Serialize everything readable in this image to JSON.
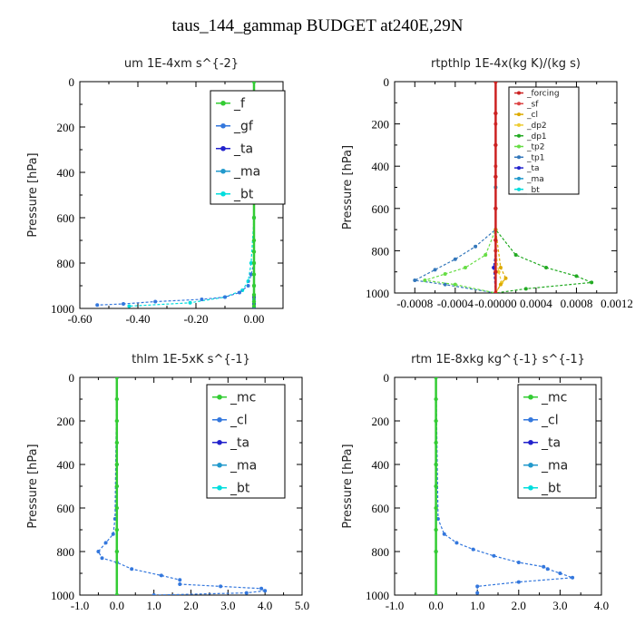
{
  "title": "taus_144_gammap  BUDGET at240E,29N",
  "chart_data": [
    {
      "type": "line",
      "title": "um  1E-4xm s^{-2}",
      "ylabel": "Pressure [hPa]",
      "ylim": [
        1000,
        0
      ],
      "xlim": [
        -0.6,
        0.1
      ],
      "xticks": [
        "-0.60",
        "-0.40",
        "-0.20",
        "0.00"
      ],
      "xtickvals": [
        -0.6,
        -0.4,
        -0.2,
        0.0
      ],
      "yticks": [
        "0",
        "200",
        "400",
        "600",
        "800",
        "1000"
      ],
      "legend_position": "top-right",
      "series": [
        {
          "name": "_f",
          "color": "#33cc33",
          "x": [
            0.0,
            0.0,
            0.0,
            0.0,
            0.0,
            0.0,
            0.0,
            0.0,
            0.0,
            0.0,
            0.0,
            0.0,
            0.0,
            0.0,
            0.0
          ],
          "y": [
            0,
            100,
            200,
            300,
            400,
            500,
            600,
            700,
            750,
            800,
            850,
            900,
            940,
            970,
            990
          ]
        },
        {
          "name": "_gf",
          "color": "#3377dd",
          "x": [
            0.0,
            0.01,
            0.01,
            0.01,
            0.0,
            0.0,
            0.0,
            -0.01,
            -0.02,
            -0.05,
            -0.1,
            -0.18,
            -0.34,
            -0.45,
            -0.54
          ],
          "y": [
            100,
            150,
            200,
            300,
            400,
            600,
            800,
            850,
            900,
            930,
            950,
            960,
            970,
            980,
            985
          ]
        },
        {
          "name": "_ta",
          "color": "#2222cc",
          "x": [
            0.0,
            0.0,
            0.0,
            0.0,
            0.0,
            0.0,
            0.0,
            0.0,
            0.0
          ],
          "y": [
            0,
            200,
            400,
            600,
            800,
            900,
            950,
            980,
            1000
          ]
        },
        {
          "name": "_ma",
          "color": "#2299cc",
          "x": [
            0.0,
            0.0,
            0.0,
            0.0,
            0.0,
            0.0
          ],
          "y": [
            0,
            300,
            600,
            900,
            960,
            1000
          ]
        },
        {
          "name": "_bt",
          "color": "#00dddd",
          "x": [
            0.0,
            0.0,
            0.0,
            -0.01,
            -0.02,
            -0.04,
            -0.1,
            -0.22,
            -0.43
          ],
          "y": [
            0,
            300,
            600,
            800,
            880,
            920,
            950,
            975,
            990
          ]
        }
      ]
    },
    {
      "type": "line",
      "title": "rtpthlp  1E-4x(kg K)/(kg s)",
      "ylabel": "Pressure [hPa]",
      "ylim": [
        1000,
        0
      ],
      "xlim": [
        -0.001,
        0.0012
      ],
      "xticks": [
        "-0.0008",
        "-0.0004",
        "-0.00000",
        "0.0004",
        "0.0008",
        "0.0012"
      ],
      "xtickvals": [
        -0.0008,
        -0.0004,
        0.0,
        0.0004,
        0.0008,
        0.0012
      ],
      "yticks": [
        "0",
        "200",
        "400",
        "600",
        "800",
        "1000"
      ],
      "legend_position": "top-right",
      "series": [
        {
          "name": "_forcing",
          "color": "#cc2222",
          "x": [
            0.0,
            0.0,
            0.0,
            0.0,
            0.0,
            0.0,
            0.0,
            0.0
          ],
          "y": [
            0,
            150,
            300,
            450,
            600,
            750,
            900,
            1000
          ]
        },
        {
          "name": "_sf",
          "color": "#dd4444",
          "x": [
            0.0,
            0.0,
            0.0,
            0.0,
            0.0,
            0.0
          ],
          "y": [
            0,
            200,
            400,
            600,
            800,
            1000
          ]
        },
        {
          "name": "_cl",
          "color": "#ddaa00",
          "x": [
            0.0,
            0.0,
            5e-05,
            0.0001,
            5e-05,
            0.0
          ],
          "y": [
            0,
            700,
            880,
            930,
            960,
            1000
          ]
        },
        {
          "name": "_dp2",
          "color": "#eecc33",
          "x": [
            0.0,
            0.0,
            3e-05,
            6e-05,
            0.0
          ],
          "y": [
            0,
            800,
            900,
            950,
            1000
          ]
        },
        {
          "name": "_dp1",
          "color": "#22aa22",
          "x": [
            0.0,
            0.0,
            0.0002,
            0.0005,
            0.0008,
            0.00095,
            0.0003,
            0.0
          ],
          "y": [
            0,
            700,
            820,
            880,
            920,
            950,
            980,
            1000
          ]
        },
        {
          "name": "_tp2",
          "color": "#66dd44",
          "x": [
            0.0,
            0.0,
            -0.0001,
            -0.0003,
            -0.0005,
            -0.0007,
            -0.0004,
            0.0
          ],
          "y": [
            0,
            700,
            820,
            880,
            910,
            940,
            960,
            1000
          ]
        },
        {
          "name": "_tp1",
          "color": "#3377bb",
          "x": [
            0.0,
            0.0,
            -0.0002,
            -0.0004,
            -0.0006,
            -0.0008,
            -0.0005,
            0.0
          ],
          "y": [
            0,
            700,
            780,
            840,
            890,
            940,
            960,
            1000
          ]
        },
        {
          "name": "_ta",
          "color": "#2222cc",
          "x": [
            0.0,
            0.0,
            -2e-05,
            0.0
          ],
          "y": [
            0,
            800,
            880,
            1000
          ]
        },
        {
          "name": "_ma",
          "color": "#2299cc",
          "x": [
            0.0,
            0.0,
            0.0
          ],
          "y": [
            0,
            500,
            1000
          ]
        },
        {
          "name": "_bt",
          "color": "#00dddd",
          "x": [
            0.0,
            0.0,
            0.0
          ],
          "y": [
            0,
            500,
            1000
          ]
        }
      ]
    },
    {
      "type": "line",
      "title": "thlm  1E-5xK s^{-1}",
      "ylabel": "Pressure [hPa]",
      "ylim": [
        1000,
        0
      ],
      "xlim": [
        -1.0,
        5.0
      ],
      "xticks": [
        "-1.0",
        "0.0",
        "1.0",
        "2.0",
        "3.0",
        "4.0",
        "5.0"
      ],
      "xtickvals": [
        -1,
        0,
        1,
        2,
        3,
        4,
        5
      ],
      "yticks": [
        "0",
        "200",
        "400",
        "600",
        "800",
        "1000"
      ],
      "legend_position": "top-right",
      "series": [
        {
          "name": "_mc",
          "color": "#33cc33",
          "x": [
            0.0,
            0.0,
            0.0,
            0.0,
            0.0,
            0.0,
            0.0,
            0.0,
            0.0,
            0.0
          ],
          "y": [
            0,
            100,
            200,
            300,
            400,
            500,
            600,
            700,
            800,
            1000
          ]
        },
        {
          "name": "_cl",
          "color": "#3377dd",
          "x": [
            0.0,
            -0.05,
            -0.1,
            -0.3,
            -0.5,
            -0.4,
            0.0,
            0.4,
            1.2,
            1.7,
            1.7,
            2.8,
            3.9,
            4.0,
            3.5,
            1.0
          ],
          "y": [
            0,
            650,
            720,
            760,
            800,
            830,
            850,
            880,
            910,
            930,
            950,
            960,
            970,
            980,
            990,
            1000
          ]
        },
        {
          "name": "_ta",
          "color": "#2222cc",
          "x": [
            0.0,
            0.0,
            0.0,
            0.0
          ],
          "y": [
            0,
            400,
            800,
            1000
          ]
        },
        {
          "name": "_ma",
          "color": "#2299cc",
          "x": [
            0.0,
            0.0,
            0.0
          ],
          "y": [
            0,
            500,
            1000
          ]
        },
        {
          "name": "_bt",
          "color": "#00dddd",
          "x": [
            0.0,
            0.0,
            0.0
          ],
          "y": [
            0,
            500,
            1000
          ]
        }
      ]
    },
    {
      "type": "line",
      "title": "rtm  1E-8xkg kg^{-1} s^{-1}",
      "ylabel": "Pressure [hPa]",
      "ylim": [
        1000,
        0
      ],
      "xlim": [
        -1.0,
        4.0
      ],
      "xticks": [
        "-1.0",
        "0.0",
        "1.0",
        "2.0",
        "3.0",
        "4.0"
      ],
      "xtickvals": [
        -1,
        0,
        1,
        2,
        3,
        4
      ],
      "yticks": [
        "0",
        "200",
        "400",
        "600",
        "800",
        "1000"
      ],
      "legend_position": "top-right",
      "series": [
        {
          "name": "_mc",
          "color": "#33cc33",
          "x": [
            0.0,
            0.0,
            0.0,
            0.0,
            0.0,
            0.0,
            0.0,
            0.0,
            0.0,
            0.0
          ],
          "y": [
            0,
            100,
            200,
            300,
            400,
            500,
            600,
            700,
            800,
            1000
          ]
        },
        {
          "name": "_cl",
          "color": "#3377dd",
          "x": [
            0.0,
            0.05,
            0.2,
            0.5,
            0.9,
            1.4,
            2.0,
            2.6,
            2.7,
            3.0,
            3.3,
            2.0,
            1.0,
            1.0
          ],
          "y": [
            0,
            650,
            720,
            760,
            790,
            820,
            850,
            870,
            880,
            900,
            920,
            940,
            960,
            990
          ]
        },
        {
          "name": "_ta",
          "color": "#2222cc",
          "x": [
            0.0,
            0.0,
            0.0,
            0.0
          ],
          "y": [
            0,
            400,
            800,
            1000
          ]
        },
        {
          "name": "_ma",
          "color": "#2299cc",
          "x": [
            0.0,
            0.0,
            0.0
          ],
          "y": [
            0,
            500,
            1000
          ]
        },
        {
          "name": "_bt",
          "color": "#00dddd",
          "x": [
            0.0,
            0.0,
            0.0
          ],
          "y": [
            0,
            500,
            1000
          ]
        }
      ]
    }
  ]
}
